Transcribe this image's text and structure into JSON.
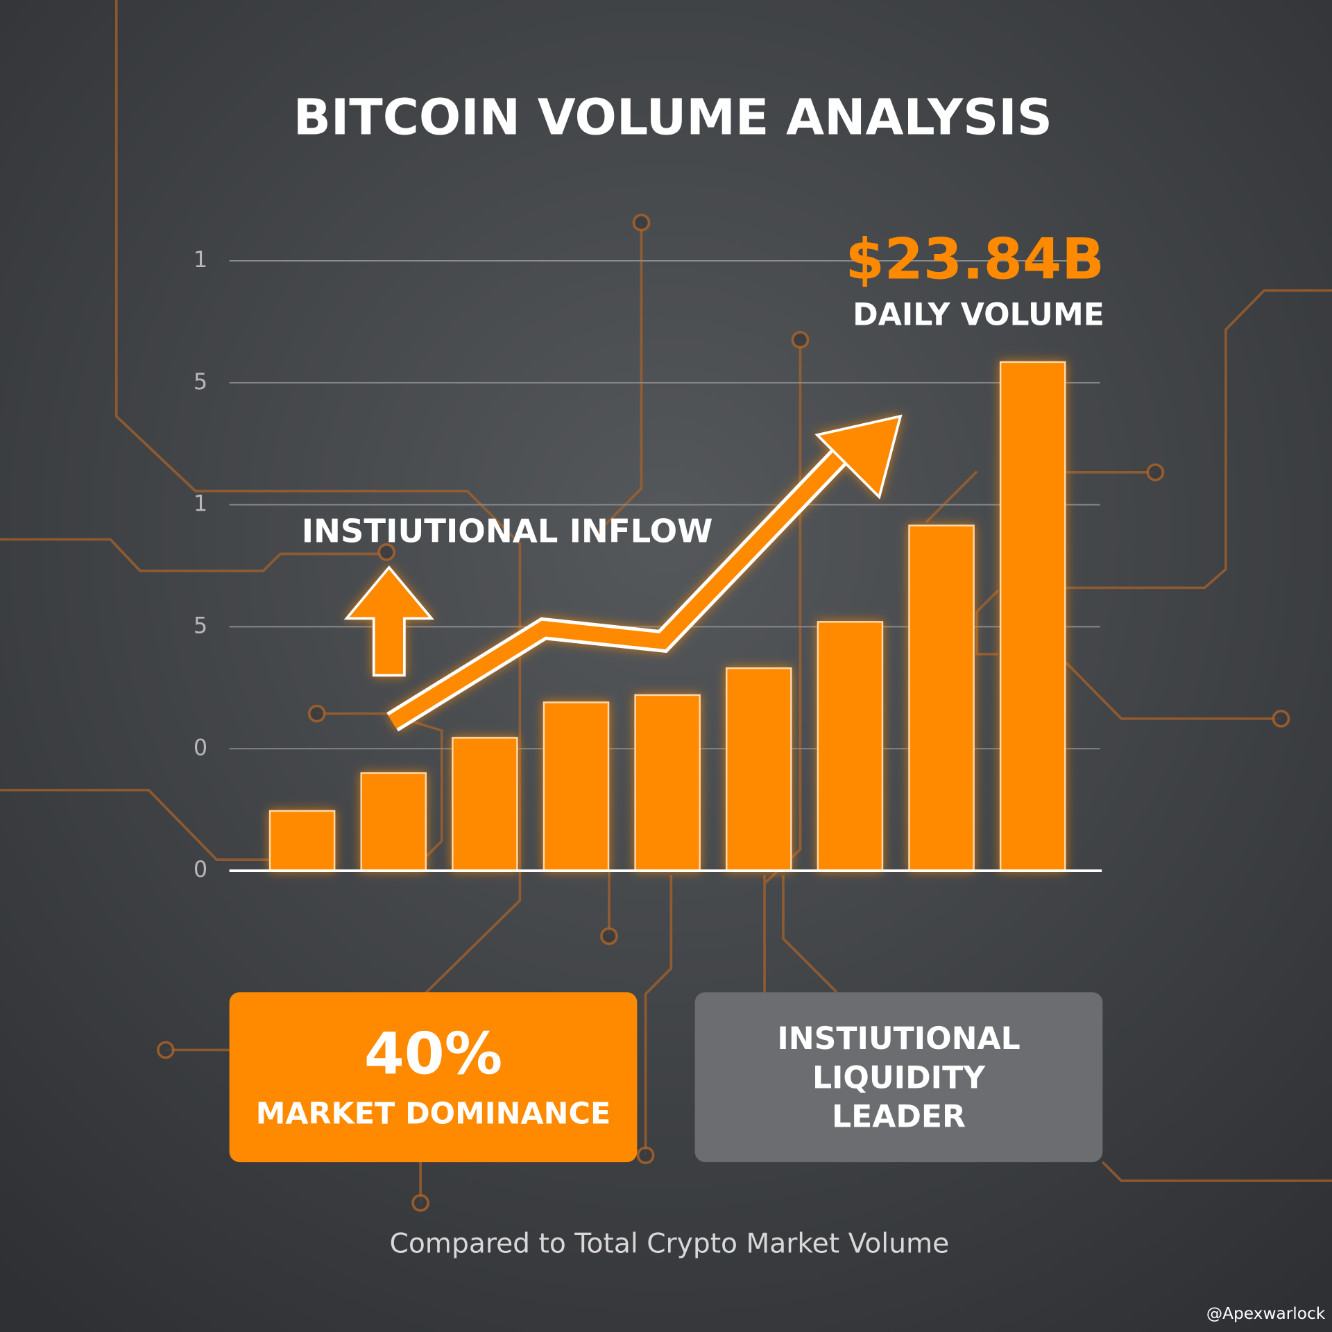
{
  "chart_data": {
    "type": "bar",
    "title": "BITCOIN VOLUME ANALYSIS",
    "categories": [
      null,
      null,
      null,
      null,
      null,
      null,
      null,
      null,
      null
    ],
    "values": [
      0.49,
      0.8,
      1.09,
      1.38,
      1.44,
      1.66,
      2.04,
      2.83,
      4.17
    ],
    "color": "#ff8a00",
    "ylim": [
      0,
      5
    ],
    "yticks": [
      0,
      {
        "value": 1,
        "label": "0"
      },
      {
        "value": 2,
        "label": "5"
      },
      {
        "value": 3,
        "label": "1"
      },
      {
        "value": 4,
        "label": "5"
      },
      {
        "value": 5,
        "label": "1"
      }
    ],
    "grid": true,
    "annotations": {
      "headline": "$23.84B",
      "headline_caption": "DAILY VOLUME",
      "trend_label": "INSTIUTIONAL INFLOW"
    },
    "cards": [
      {
        "value": "40%",
        "label": "MARKET DOMINANCE"
      },
      {
        "lines": [
          "INSTIUTIONAL",
          "LIQUIDITY",
          "LEADER"
        ]
      }
    ],
    "footnote": "Compared to Total Crypto Market Volume",
    "watermark": "@Apexwarlock"
  }
}
